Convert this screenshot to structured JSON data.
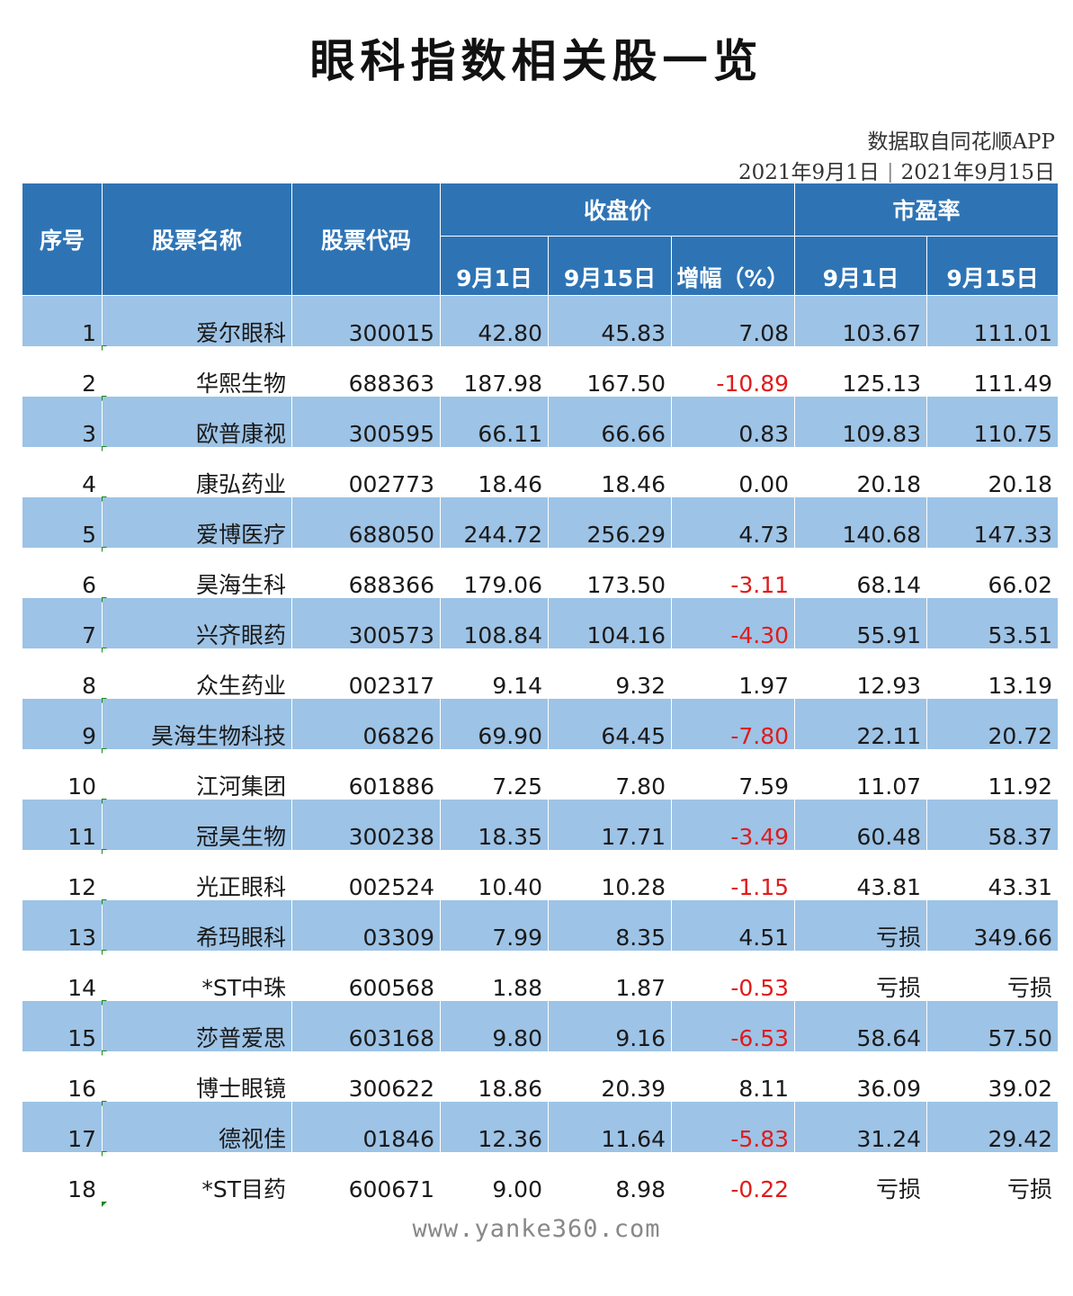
{
  "title": "眼科指数相关股一览",
  "source": "数据取自同花顺APP",
  "date_start": "2021年9月1日",
  "date_sep": "|",
  "date_end": "2021年9月15日",
  "headers": {
    "seq": "序号",
    "name": "股票名称",
    "code": "股票代码",
    "close_group": "收盘价",
    "pe_group": "市盈率",
    "close_d1": "9月1日",
    "close_d2": "9月15日",
    "change": "增幅（%）",
    "pe_d1": "9月1日",
    "pe_d2": "9月15日"
  },
  "rows": [
    {
      "seq": "1",
      "name": "爱尔眼科",
      "code": "300015",
      "c1": "42.80",
      "c2": "45.83",
      "chg": "7.08",
      "neg": false,
      "p1": "103.67",
      "p2": "111.01"
    },
    {
      "seq": "2",
      "name": "华熙生物",
      "code": "688363",
      "c1": "187.98",
      "c2": "167.50",
      "chg": "-10.89",
      "neg": true,
      "p1": "125.13",
      "p2": "111.49"
    },
    {
      "seq": "3",
      "name": "欧普康视",
      "code": "300595",
      "c1": "66.11",
      "c2": "66.66",
      "chg": "0.83",
      "neg": false,
      "p1": "109.83",
      "p2": "110.75"
    },
    {
      "seq": "4",
      "name": "康弘药业",
      "code": "002773",
      "c1": "18.46",
      "c2": "18.46",
      "chg": "0.00",
      "neg": false,
      "p1": "20.18",
      "p2": "20.18"
    },
    {
      "seq": "5",
      "name": "爱博医疗",
      "code": "688050",
      "c1": "244.72",
      "c2": "256.29",
      "chg": "4.73",
      "neg": false,
      "p1": "140.68",
      "p2": "147.33"
    },
    {
      "seq": "6",
      "name": "昊海生科",
      "code": "688366",
      "c1": "179.06",
      "c2": "173.50",
      "chg": "-3.11",
      "neg": true,
      "p1": "68.14",
      "p2": "66.02"
    },
    {
      "seq": "7",
      "name": "兴齐眼药",
      "code": "300573",
      "c1": "108.84",
      "c2": "104.16",
      "chg": "-4.30",
      "neg": true,
      "p1": "55.91",
      "p2": "53.51"
    },
    {
      "seq": "8",
      "name": "众生药业",
      "code": "002317",
      "c1": "9.14",
      "c2": "9.32",
      "chg": "1.97",
      "neg": false,
      "p1": "12.93",
      "p2": "13.19"
    },
    {
      "seq": "9",
      "name": "昊海生物科技",
      "code": "06826",
      "c1": "69.90",
      "c2": "64.45",
      "chg": "-7.80",
      "neg": true,
      "p1": "22.11",
      "p2": "20.72"
    },
    {
      "seq": "10",
      "name": "江河集团",
      "code": "601886",
      "c1": "7.25",
      "c2": "7.80",
      "chg": "7.59",
      "neg": false,
      "p1": "11.07",
      "p2": "11.92"
    },
    {
      "seq": "11",
      "name": "冠昊生物",
      "code": "300238",
      "c1": "18.35",
      "c2": "17.71",
      "chg": "-3.49",
      "neg": true,
      "p1": "60.48",
      "p2": "58.37"
    },
    {
      "seq": "12",
      "name": "光正眼科",
      "code": "002524",
      "c1": "10.40",
      "c2": "10.28",
      "chg": "-1.15",
      "neg": true,
      "p1": "43.81",
      "p2": "43.31"
    },
    {
      "seq": "13",
      "name": "希玛眼科",
      "code": "03309",
      "c1": "7.99",
      "c2": "8.35",
      "chg": "4.51",
      "neg": false,
      "p1": "亏损",
      "p2": "349.66"
    },
    {
      "seq": "14",
      "name": "*ST中珠",
      "code": "600568",
      "c1": "1.88",
      "c2": "1.87",
      "chg": "-0.53",
      "neg": true,
      "p1": "亏损",
      "p2": "亏损"
    },
    {
      "seq": "15",
      "name": "莎普爱思",
      "code": "603168",
      "c1": "9.80",
      "c2": "9.16",
      "chg": "-6.53",
      "neg": true,
      "p1": "58.64",
      "p2": "57.50"
    },
    {
      "seq": "16",
      "name": "博士眼镜",
      "code": "300622",
      "c1": "18.86",
      "c2": "20.39",
      "chg": "8.11",
      "neg": false,
      "p1": "36.09",
      "p2": "39.02"
    },
    {
      "seq": "17",
      "name": "德视佳",
      "code": "01846",
      "c1": "12.36",
      "c2": "11.64",
      "chg": "-5.83",
      "neg": true,
      "p1": "31.24",
      "p2": "29.42"
    },
    {
      "seq": "18",
      "name": "*ST目药",
      "code": "600671",
      "c1": "9.00",
      "c2": "8.98",
      "chg": "-0.22",
      "neg": true,
      "p1": "亏损",
      "p2": "亏损"
    }
  ],
  "footer": "www.yanke360.com",
  "colors": {
    "header_bg": "#2e74b5",
    "band_bg": "#9dc3e6",
    "negative": "#e01b1b"
  }
}
